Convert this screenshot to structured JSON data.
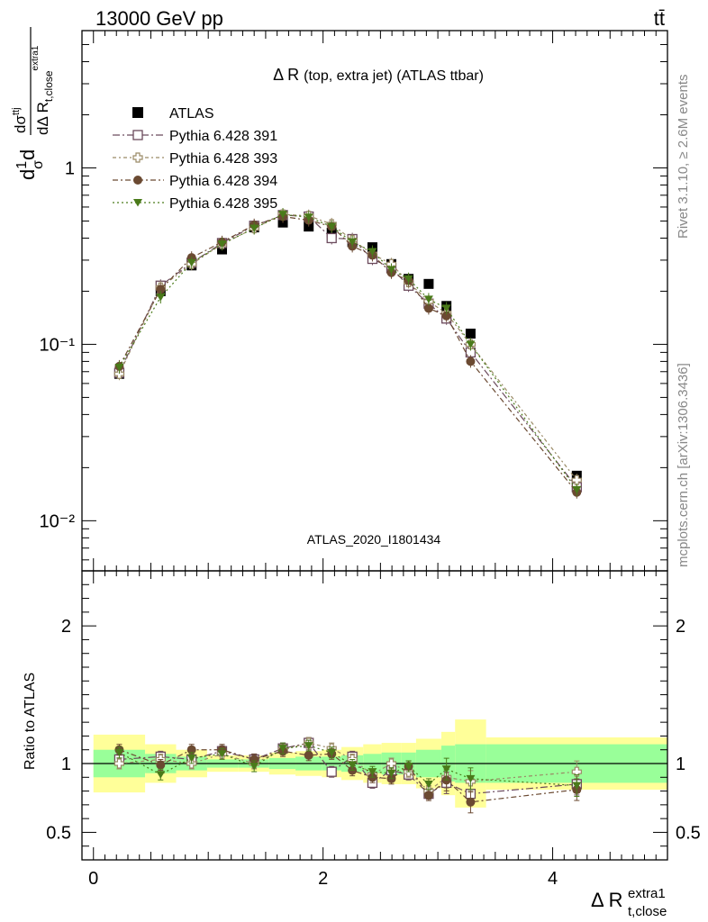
{
  "header": {
    "left": "13000 GeV pp",
    "right": "tt̄"
  },
  "plot_title": {
    "main": "Δ R",
    "detail": "(top, extra jet) (ATLAS ttbar)"
  },
  "side_labels": {
    "rivet": "Rivet 3.1.10, ≥ 2.6M events",
    "mcplots": "mcplots.cern.ch [arXiv:1306.3436]"
  },
  "analysis_label": "ATLAS_2020_I1801434",
  "y_label": {
    "d": "d",
    "one": "1",
    "sigma": "σ",
    "dsig_num": "dσ",
    "dsig_sup": "ttj",
    "den": "dΔ R",
    "den_sub": "t,close",
    "den_sup": "extra1"
  },
  "x_label": {
    "main": "Δ R",
    "sub": "t,close",
    "sup": "extra1"
  },
  "ratio_label": "Ratio to ATLAS",
  "colors": {
    "atlas": "#000000",
    "p391": "#6b4a5c",
    "p393": "#9a8a66",
    "p394": "#6b4a32",
    "p395": "#4a7a1a",
    "band_inner": "#99ff99",
    "band_outer": "#ffff99"
  },
  "chart_data": {
    "type": "scatter",
    "x": [
      0.225,
      0.585,
      0.855,
      1.12,
      1.4,
      1.65,
      1.875,
      2.075,
      2.255,
      2.43,
      2.595,
      2.745,
      2.92,
      3.075,
      3.285,
      4.21
    ],
    "bins": [
      [
        0,
        0.45
      ],
      [
        0.45,
        0.72
      ],
      [
        0.72,
        0.99
      ],
      [
        0.99,
        1.26
      ],
      [
        1.26,
        1.53
      ],
      [
        1.53,
        1.76
      ],
      [
        1.76,
        1.99
      ],
      [
        1.99,
        2.16
      ],
      [
        2.16,
        2.35
      ],
      [
        2.35,
        2.51
      ],
      [
        2.51,
        2.68
      ],
      [
        2.68,
        2.81
      ],
      [
        2.81,
        3.03
      ],
      [
        3.03,
        3.15
      ],
      [
        3.15,
        3.42
      ],
      [
        3.42,
        5.0
      ]
    ],
    "x_range": [
      -0.1,
      5.0
    ],
    "x_ticks": [
      0,
      2,
      4
    ],
    "main_y_range": [
      0.0052,
      6.0
    ],
    "main_y_scale": "log",
    "main_y_ticks": [
      "1",
      "10⁻¹",
      "10⁻²"
    ],
    "ratio_y_range": [
      0.3,
      2.4
    ],
    "ratio_y_ticks": [
      0.5,
      1,
      2
    ],
    "legend_position": "top-left",
    "series": [
      {
        "name": "ATLAS",
        "marker": "square-filled",
        "values": [
          0.068,
          0.2,
          0.28,
          0.345,
          0.46,
          0.49,
          0.465,
          0.43,
          0.38,
          0.355,
          0.285,
          0.235,
          0.22,
          0.165,
          0.115,
          0.018
        ]
      },
      {
        "name": "Pythia 6.428 391",
        "marker": "square-open",
        "values": [
          0.069,
          0.215,
          0.29,
          0.375,
          0.47,
          0.54,
          0.53,
          0.4,
          0.395,
          0.305,
          0.27,
          0.215,
          0.17,
          0.14,
          0.09,
          0.0155
        ],
        "ratio": [
          1.03,
          1.05,
          1.03,
          1.09,
          1.03,
          1.11,
          1.15,
          0.94,
          1.05,
          0.86,
          0.95,
          0.92,
          0.78,
          0.86,
          0.78,
          0.85
        ]
      },
      {
        "name": "Pythia 6.428 393",
        "marker": "cross-open",
        "values": [
          0.068,
          0.21,
          0.285,
          0.37,
          0.455,
          0.545,
          0.535,
          0.48,
          0.39,
          0.325,
          0.285,
          0.225,
          0.175,
          0.15,
          0.1,
          0.017
        ],
        "ratio": [
          1.0,
          1.03,
          1.0,
          1.07,
          1.0,
          1.1,
          1.15,
          1.11,
          1.03,
          0.92,
          1.0,
          0.94,
          0.8,
          0.9,
          0.87,
          0.94
        ]
      },
      {
        "name": "Pythia 6.428 394",
        "marker": "circle-filled",
        "values": [
          0.075,
          0.205,
          0.31,
          0.38,
          0.475,
          0.53,
          0.505,
          0.465,
          0.36,
          0.32,
          0.255,
          0.23,
          0.16,
          0.145,
          0.08,
          0.0145
        ],
        "ratio": [
          1.1,
          0.99,
          1.1,
          1.1,
          1.03,
          1.09,
          1.06,
          1.07,
          0.95,
          0.9,
          0.89,
          0.98,
          0.77,
          0.88,
          0.72,
          0.81
        ]
      },
      {
        "name": "Pythia 6.428 395",
        "marker": "triangle-down-filled",
        "values": [
          0.074,
          0.185,
          0.29,
          0.37,
          0.455,
          0.545,
          0.525,
          0.465,
          0.38,
          0.335,
          0.265,
          0.235,
          0.18,
          0.16,
          0.1,
          0.015
        ],
        "ratio": [
          1.08,
          0.92,
          1.04,
          1.07,
          0.98,
          1.11,
          1.13,
          1.08,
          0.99,
          0.94,
          0.93,
          0.98,
          0.85,
          0.96,
          0.89,
          0.84
        ]
      }
    ],
    "band_inner": [
      [
        0.9,
        1.1
      ],
      [
        0.93,
        1.07
      ],
      [
        0.95,
        1.05
      ],
      [
        0.97,
        1.03
      ],
      [
        0.97,
        1.03
      ],
      [
        0.96,
        1.04
      ],
      [
        0.95,
        1.05
      ],
      [
        0.95,
        1.05
      ],
      [
        0.94,
        1.06
      ],
      [
        0.93,
        1.07
      ],
      [
        0.92,
        1.08
      ],
      [
        0.92,
        1.08
      ],
      [
        0.9,
        1.1
      ],
      [
        0.87,
        1.13
      ],
      [
        0.86,
        1.14
      ],
      [
        0.86,
        1.14
      ]
    ],
    "band_outer": [
      [
        0.79,
        1.21
      ],
      [
        0.86,
        1.14
      ],
      [
        0.9,
        1.1
      ],
      [
        0.94,
        1.06
      ],
      [
        0.94,
        1.06
      ],
      [
        0.92,
        1.08
      ],
      [
        0.91,
        1.09
      ],
      [
        0.9,
        1.1
      ],
      [
        0.88,
        1.12
      ],
      [
        0.86,
        1.14
      ],
      [
        0.85,
        1.15
      ],
      [
        0.85,
        1.15
      ],
      [
        0.82,
        1.18
      ],
      [
        0.77,
        1.23
      ],
      [
        0.68,
        1.32
      ],
      [
        0.81,
        1.19
      ]
    ]
  }
}
